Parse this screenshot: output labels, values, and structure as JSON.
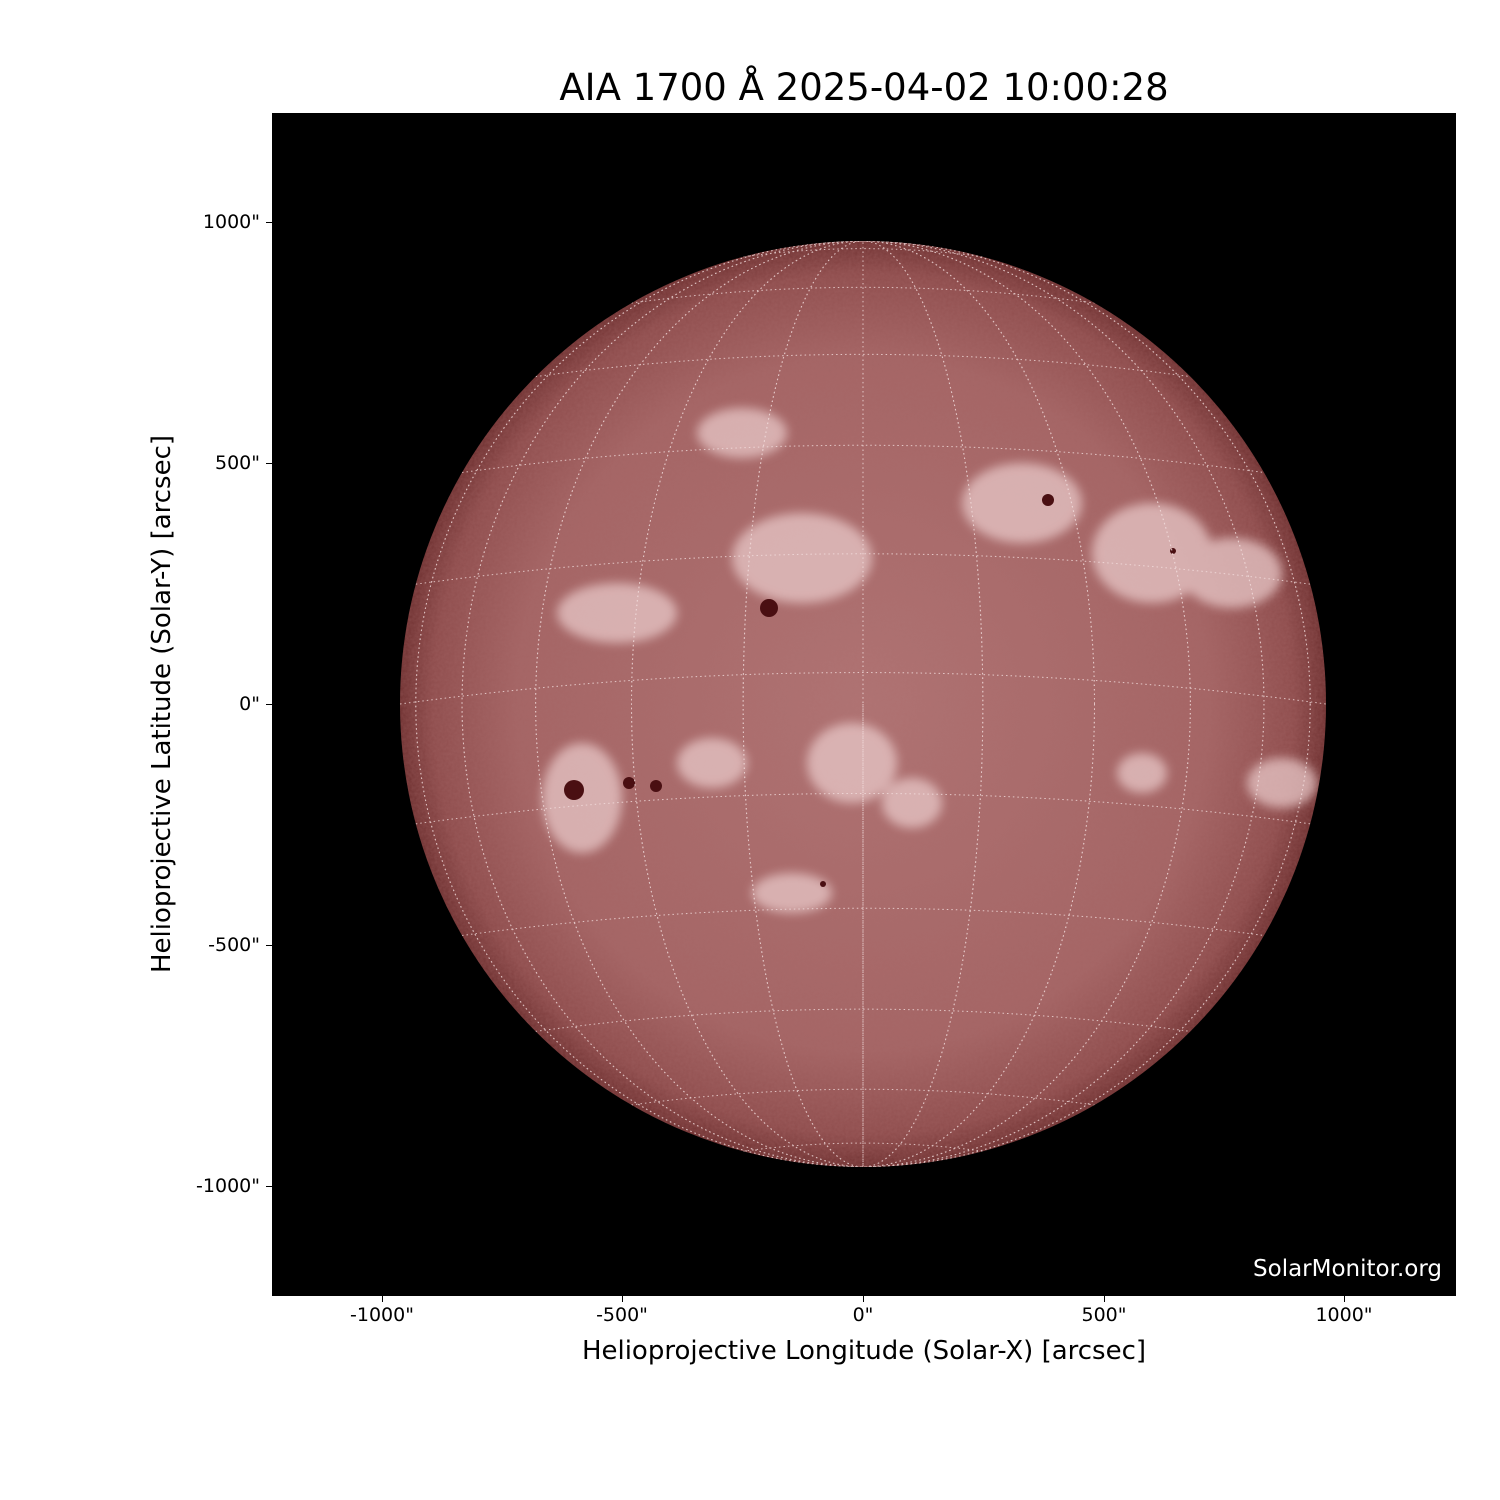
{
  "title": "AIA 1700 Å 2025-04-02 10:00:28",
  "image": {
    "instrument": "AIA",
    "wavelength": "1700 Å",
    "colors": {
      "disk_center": "#b07474",
      "disk_limb": "#6e3030",
      "plage": "#e8c8c8",
      "sunspot": "#4a0f12",
      "background": "#000000"
    }
  },
  "axes": {
    "xlabel": "Helioprojective Longitude (Solar-X) [arcsec]",
    "ylabel": "Helioprojective Latitude (Solar-Y) [arcsec]",
    "xticks": [
      "-1000\"",
      "-500\"",
      "0\"",
      "500\"",
      "1000\""
    ],
    "yticks": [
      "1000\"",
      "500\"",
      "0\"",
      "-500\"",
      "-1000\""
    ],
    "xlim": [
      -1230,
      1230
    ],
    "ylim": [
      -1230,
      1230
    ],
    "grid_spacing_deg": 15
  },
  "watermark": "SolarMonitor.org"
}
